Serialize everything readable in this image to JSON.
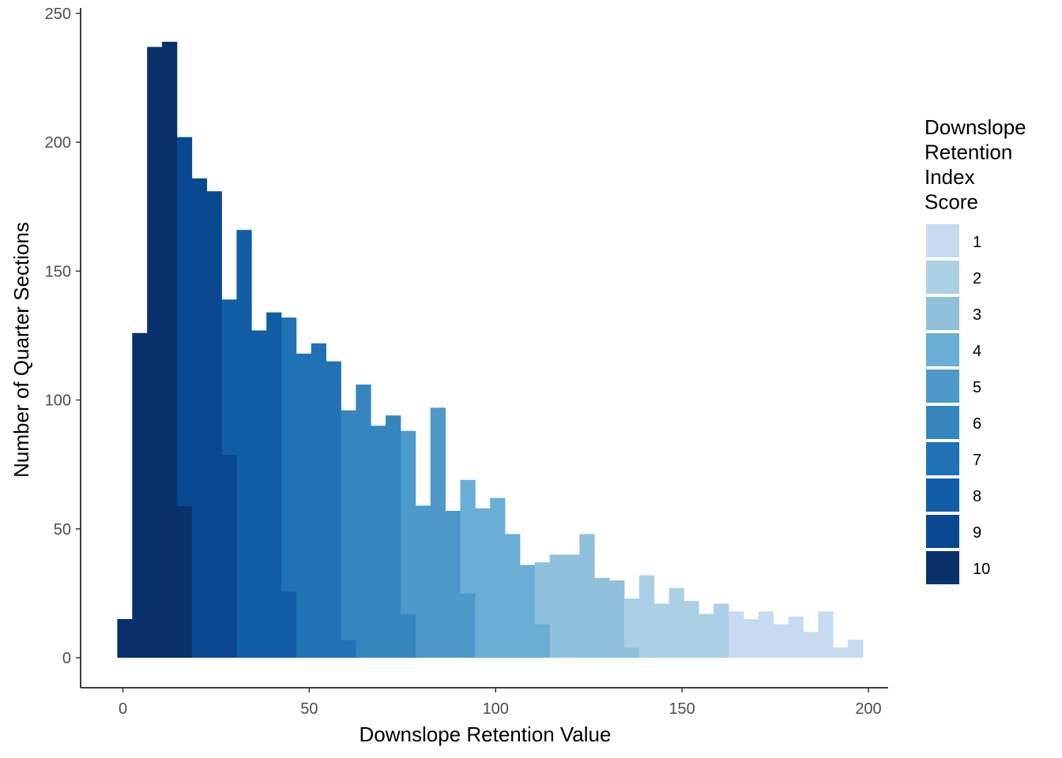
{
  "chart_data": {
    "type": "bar",
    "subtype": "stacked-histogram",
    "xlabel": "Downslope Retention Value",
    "ylabel": "Number of Quarter Sections",
    "xlim": [
      -2,
      197
    ],
    "ylim": [
      0,
      250
    ],
    "x_ticks": [
      0,
      50,
      100,
      150,
      200
    ],
    "y_ticks": [
      0,
      50,
      100,
      150,
      200,
      250
    ],
    "grid": false,
    "legend": {
      "title_lines": [
        "Downslope",
        "Retention",
        "Index",
        "Score"
      ],
      "position": "right",
      "items": [
        {
          "label": "1",
          "color": "#c6dbef"
        },
        {
          "label": "2",
          "color": "#abcfe5"
        },
        {
          "label": "3",
          "color": "#8fc0dc"
        },
        {
          "label": "4",
          "color": "#6aaed6"
        },
        {
          "label": "5",
          "color": "#4d99ca"
        },
        {
          "label": "6",
          "color": "#3585bf"
        },
        {
          "label": "7",
          "color": "#2171b5"
        },
        {
          "label": "8",
          "color": "#115ea6"
        },
        {
          "label": "9",
          "color": "#084891"
        },
        {
          "label": "10",
          "color": "#08306b"
        }
      ]
    },
    "bins": [
      {
        "x0": -1.5,
        "x1": 2.5,
        "segments": [
          {
            "score": "10",
            "count": 15
          }
        ]
      },
      {
        "x0": 2.5,
        "x1": 6.5,
        "segments": [
          {
            "score": "10",
            "count": 126
          }
        ]
      },
      {
        "x0": 6.5,
        "x1": 10.5,
        "segments": [
          {
            "score": "10",
            "count": 237
          }
        ]
      },
      {
        "x0": 10.5,
        "x1": 14.5,
        "segments": [
          {
            "score": "10",
            "count": 239
          }
        ]
      },
      {
        "x0": 14.5,
        "x1": 18.5,
        "segments": [
          {
            "score": "10",
            "count": 59
          },
          {
            "score": "9",
            "count": 143
          }
        ]
      },
      {
        "x0": 18.5,
        "x1": 22.5,
        "segments": [
          {
            "score": "9",
            "count": 186
          }
        ]
      },
      {
        "x0": 22.5,
        "x1": 26.5,
        "segments": [
          {
            "score": "9",
            "count": 181
          }
        ]
      },
      {
        "x0": 26.5,
        "x1": 30.5,
        "segments": [
          {
            "score": "9",
            "count": 79
          },
          {
            "score": "8",
            "count": 60
          }
        ]
      },
      {
        "x0": 30.5,
        "x1": 34.5,
        "segments": [
          {
            "score": "8",
            "count": 166
          }
        ]
      },
      {
        "x0": 34.5,
        "x1": 38.5,
        "segments": [
          {
            "score": "8",
            "count": 127
          }
        ]
      },
      {
        "x0": 38.5,
        "x1": 42.5,
        "segments": [
          {
            "score": "8",
            "count": 134
          }
        ]
      },
      {
        "x0": 42.5,
        "x1": 46.5,
        "segments": [
          {
            "score": "8",
            "count": 26
          },
          {
            "score": "7",
            "count": 106
          }
        ]
      },
      {
        "x0": 46.5,
        "x1": 50.5,
        "segments": [
          {
            "score": "7",
            "count": 118
          }
        ]
      },
      {
        "x0": 50.5,
        "x1": 54.5,
        "segments": [
          {
            "score": "7",
            "count": 122
          }
        ]
      },
      {
        "x0": 54.5,
        "x1": 58.5,
        "segments": [
          {
            "score": "7",
            "count": 115
          }
        ]
      },
      {
        "x0": 58.5,
        "x1": 62.5,
        "segments": [
          {
            "score": "7",
            "count": 7
          },
          {
            "score": "6",
            "count": 89
          }
        ]
      },
      {
        "x0": 62.5,
        "x1": 66.5,
        "segments": [
          {
            "score": "6",
            "count": 106
          }
        ]
      },
      {
        "x0": 66.5,
        "x1": 70.5,
        "segments": [
          {
            "score": "6",
            "count": 90
          }
        ]
      },
      {
        "x0": 70.5,
        "x1": 74.5,
        "segments": [
          {
            "score": "6",
            "count": 94
          }
        ]
      },
      {
        "x0": 74.5,
        "x1": 78.5,
        "segments": [
          {
            "score": "6",
            "count": 17
          },
          {
            "score": "5",
            "count": 71
          }
        ]
      },
      {
        "x0": 78.5,
        "x1": 82.5,
        "segments": [
          {
            "score": "5",
            "count": 59
          }
        ]
      },
      {
        "x0": 82.5,
        "x1": 86.5,
        "segments": [
          {
            "score": "5",
            "count": 97
          }
        ]
      },
      {
        "x0": 86.5,
        "x1": 90.5,
        "segments": [
          {
            "score": "5",
            "count": 57
          }
        ]
      },
      {
        "x0": 90.5,
        "x1": 94.5,
        "segments": [
          {
            "score": "5",
            "count": 25
          },
          {
            "score": "4",
            "count": 44
          }
        ]
      },
      {
        "x0": 94.5,
        "x1": 98.5,
        "segments": [
          {
            "score": "4",
            "count": 58
          }
        ]
      },
      {
        "x0": 98.5,
        "x1": 102.5,
        "segments": [
          {
            "score": "4",
            "count": 62
          }
        ]
      },
      {
        "x0": 102.5,
        "x1": 106.5,
        "segments": [
          {
            "score": "4",
            "count": 48
          }
        ]
      },
      {
        "x0": 106.5,
        "x1": 110.5,
        "segments": [
          {
            "score": "4",
            "count": 36
          }
        ]
      },
      {
        "x0": 110.5,
        "x1": 114.5,
        "segments": [
          {
            "score": "4",
            "count": 13
          },
          {
            "score": "3",
            "count": 24
          }
        ]
      },
      {
        "x0": 114.5,
        "x1": 118.5,
        "segments": [
          {
            "score": "3",
            "count": 40
          }
        ]
      },
      {
        "x0": 118.5,
        "x1": 122.5,
        "segments": [
          {
            "score": "3",
            "count": 40
          }
        ]
      },
      {
        "x0": 122.5,
        "x1": 126.5,
        "segments": [
          {
            "score": "3",
            "count": 48
          }
        ]
      },
      {
        "x0": 126.5,
        "x1": 130.5,
        "segments": [
          {
            "score": "3",
            "count": 31
          }
        ]
      },
      {
        "x0": 130.5,
        "x1": 134.5,
        "segments": [
          {
            "score": "3",
            "count": 30
          }
        ]
      },
      {
        "x0": 134.5,
        "x1": 138.5,
        "segments": [
          {
            "score": "3",
            "count": 4
          },
          {
            "score": "2",
            "count": 19
          }
        ]
      },
      {
        "x0": 138.5,
        "x1": 142.5,
        "segments": [
          {
            "score": "2",
            "count": 32
          }
        ]
      },
      {
        "x0": 142.5,
        "x1": 146.5,
        "segments": [
          {
            "score": "2",
            "count": 21
          }
        ]
      },
      {
        "x0": 146.5,
        "x1": 150.5,
        "segments": [
          {
            "score": "2",
            "count": 27
          }
        ]
      },
      {
        "x0": 150.5,
        "x1": 154.5,
        "segments": [
          {
            "score": "2",
            "count": 22
          }
        ]
      },
      {
        "x0": 154.5,
        "x1": 158.5,
        "segments": [
          {
            "score": "2",
            "count": 17
          }
        ]
      },
      {
        "x0": 158.5,
        "x1": 162.5,
        "segments": [
          {
            "score": "2",
            "count": 21
          }
        ]
      },
      {
        "x0": 162.5,
        "x1": 166.5,
        "segments": [
          {
            "score": "1",
            "count": 18
          }
        ]
      },
      {
        "x0": 166.5,
        "x1": 170.5,
        "segments": [
          {
            "score": "1",
            "count": 15
          }
        ]
      },
      {
        "x0": 170.5,
        "x1": 174.5,
        "segments": [
          {
            "score": "1",
            "count": 18
          }
        ]
      },
      {
        "x0": 174.5,
        "x1": 178.5,
        "segments": [
          {
            "score": "1",
            "count": 13
          }
        ]
      },
      {
        "x0": 178.5,
        "x1": 182.5,
        "segments": [
          {
            "score": "1",
            "count": 16
          }
        ]
      },
      {
        "x0": 182.5,
        "x1": 186.5,
        "segments": [
          {
            "score": "1",
            "count": 10
          }
        ]
      },
      {
        "x0": 186.5,
        "x1": 190.5,
        "segments": [
          {
            "score": "1",
            "count": 18
          }
        ]
      },
      {
        "x0": 190.5,
        "x1": 194.5,
        "segments": [
          {
            "score": "1",
            "count": 4
          }
        ]
      },
      {
        "x0": 194.5,
        "x1": 198.5,
        "segments": [
          {
            "score": "1",
            "count": 7
          }
        ]
      }
    ]
  }
}
